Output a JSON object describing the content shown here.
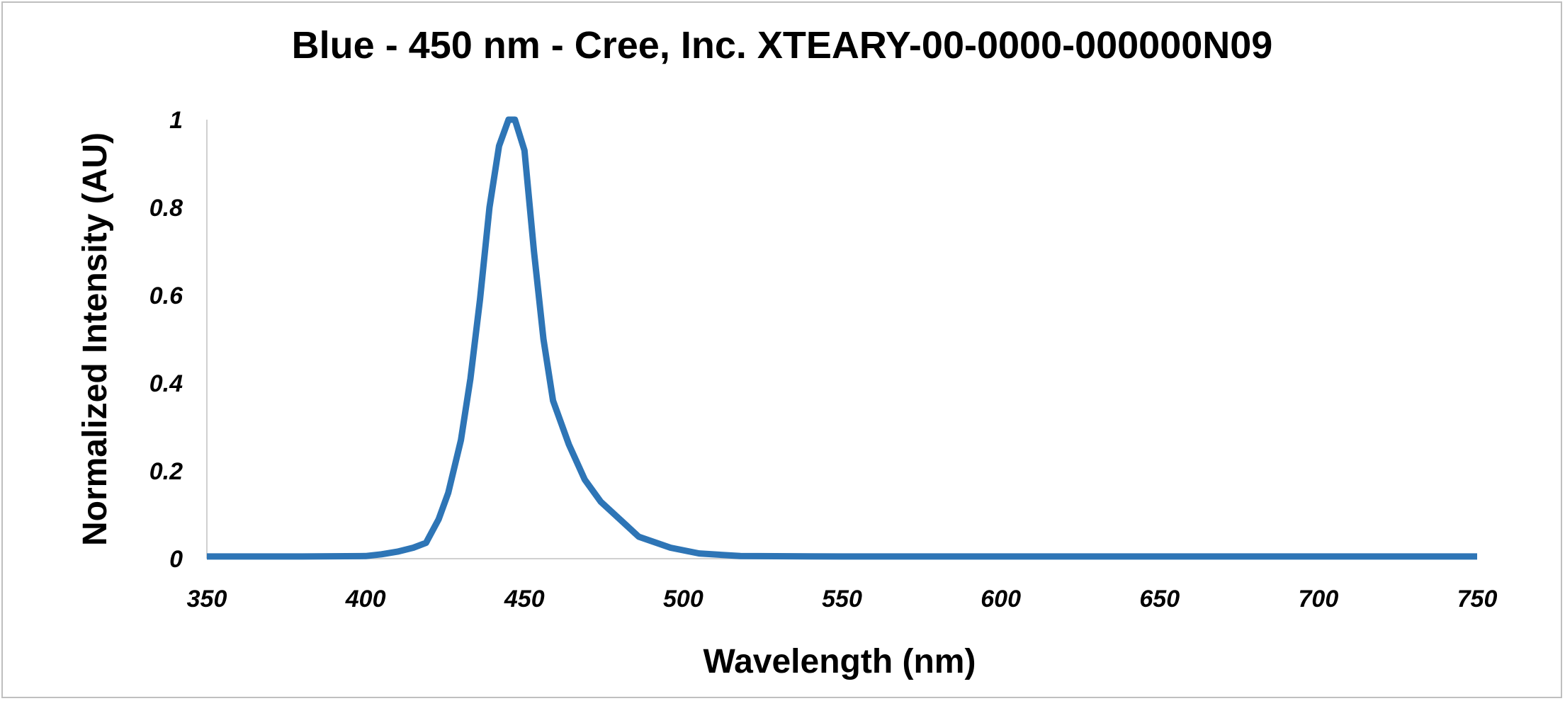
{
  "chart_data": {
    "type": "line",
    "title": "Blue - 450 nm - Cree, Inc. XTEARY-00-0000-000000N09",
    "xlabel": "Wavelength (nm)",
    "ylabel": "Normalized Intensity (AU)",
    "xlim": [
      350,
      750
    ],
    "ylim": [
      0,
      1
    ],
    "xticks": [
      "350",
      "400",
      "450",
      "500",
      "550",
      "600",
      "650",
      "700",
      "750"
    ],
    "yticks": [
      "0",
      "0.2",
      "0.4",
      "0.6",
      "0.8",
      "1"
    ],
    "grid": false,
    "legend": "none",
    "series_color": "#2E75B6",
    "series": [
      {
        "x": [
          350,
          380,
          400,
          405,
          410,
          415,
          419,
          423,
          426,
          430,
          433,
          436,
          439,
          442,
          445,
          447,
          450,
          453,
          456,
          459,
          464,
          469,
          474,
          480,
          486,
          496,
          505,
          518,
          550,
          600,
          650,
          700,
          750
        ],
        "y": [
          0.005,
          0.005,
          0.006,
          0.01,
          0.016,
          0.025,
          0.036,
          0.09,
          0.15,
          0.27,
          0.41,
          0.59,
          0.8,
          0.94,
          1.0,
          1.0,
          0.93,
          0.7,
          0.5,
          0.36,
          0.26,
          0.18,
          0.13,
          0.09,
          0.05,
          0.025,
          0.012,
          0.006,
          0.005,
          0.005,
          0.005,
          0.005,
          0.005
        ]
      }
    ]
  }
}
